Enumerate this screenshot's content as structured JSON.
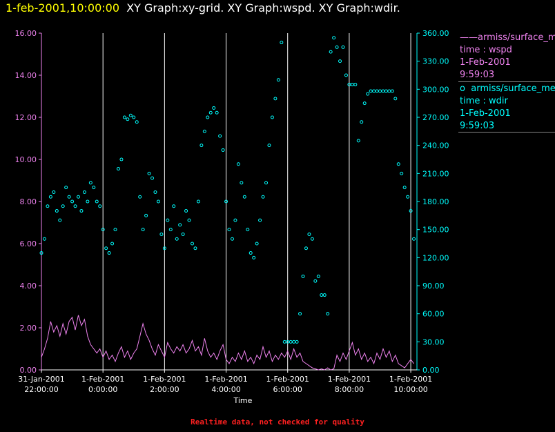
{
  "header": {
    "timestamp": "1-feb-2001,10:00:00",
    "graphs": "XY Graph:xy-grid.  XY Graph:wspd.  XY Graph:wdir."
  },
  "colors": {
    "background": "#000000",
    "timestamp": "#ffff00",
    "title": "#ffffff",
    "wspd": "#ee82ee",
    "wdir": "#00ffff",
    "grid": "#ffffff",
    "warning": "#ff2020"
  },
  "legend": [
    {
      "symbol": "——",
      "source": "armiss/surface_met",
      "variable": "time : wspd",
      "date": "1-Feb-2001",
      "time": "9:59:03"
    },
    {
      "symbol": "o",
      "source": "armiss/surface_met",
      "variable": "time : wdir",
      "date": "1-Feb-2001",
      "time": "9:59:03"
    }
  ],
  "warning": "Realtime data, not checked for quality",
  "chart_data": {
    "type": "line",
    "xlabel": "Time",
    "x_range_hours": [
      22.0,
      34.2
    ],
    "x_ticks": [
      {
        "hour": 22,
        "line1": "31-Jan-2001",
        "line2": "22:00:00"
      },
      {
        "hour": 24,
        "line1": "1-Feb-2001",
        "line2": "0:00:00"
      },
      {
        "hour": 26,
        "line1": "1-Feb-2001",
        "line2": "2:00:00"
      },
      {
        "hour": 28,
        "line1": "1-Feb-2001",
        "line2": "4:00:00"
      },
      {
        "hour": 30,
        "line1": "1-Feb-2001",
        "line2": "6:00:00"
      },
      {
        "hour": 32,
        "line1": "1-Feb-2001",
        "line2": "8:00:00"
      },
      {
        "hour": 34,
        "line1": "1-Feb-2001",
        "line2": "10:00:00"
      }
    ],
    "y_left": {
      "range": [
        0,
        16
      ],
      "ticks": [
        "0.00",
        "2.00",
        "4.00",
        "6.00",
        "8.00",
        "10.00",
        "12.00",
        "14.00",
        "16.00"
      ]
    },
    "y_right": {
      "range": [
        0,
        360
      ],
      "ticks": [
        "0.00",
        "30.00",
        "60.00",
        "90.00",
        "120.00",
        "150.00",
        "180.00",
        "210.00",
        "240.00",
        "270.00",
        "300.00",
        "330.00",
        "360.00"
      ]
    },
    "grid": "vertical at x ticks",
    "series": [
      {
        "variable": "wspd",
        "style": "line",
        "axis": "left",
        "points": [
          [
            22.0,
            0.6
          ],
          [
            22.1,
            1.0
          ],
          [
            22.2,
            1.5
          ],
          [
            22.3,
            2.3
          ],
          [
            22.4,
            1.8
          ],
          [
            22.5,
            2.1
          ],
          [
            22.6,
            1.6
          ],
          [
            22.7,
            2.2
          ],
          [
            22.8,
            1.7
          ],
          [
            22.9,
            2.3
          ],
          [
            23.0,
            2.5
          ],
          [
            23.1,
            1.9
          ],
          [
            23.2,
            2.6
          ],
          [
            23.3,
            2.1
          ],
          [
            23.4,
            2.4
          ],
          [
            23.5,
            1.6
          ],
          [
            23.6,
            1.2
          ],
          [
            23.7,
            1.0
          ],
          [
            23.8,
            0.8
          ],
          [
            23.9,
            1.0
          ],
          [
            24.0,
            0.6
          ],
          [
            24.1,
            0.9
          ],
          [
            24.2,
            0.5
          ],
          [
            24.3,
            0.7
          ],
          [
            24.4,
            0.4
          ],
          [
            24.5,
            0.8
          ],
          [
            24.6,
            1.1
          ],
          [
            24.7,
            0.6
          ],
          [
            24.8,
            0.9
          ],
          [
            24.9,
            0.5
          ],
          [
            25.0,
            0.8
          ],
          [
            25.1,
            1.0
          ],
          [
            25.2,
            1.6
          ],
          [
            25.3,
            2.2
          ],
          [
            25.4,
            1.7
          ],
          [
            25.5,
            1.4
          ],
          [
            25.6,
            1.0
          ],
          [
            25.7,
            0.7
          ],
          [
            25.8,
            1.2
          ],
          [
            25.9,
            0.9
          ],
          [
            26.0,
            0.6
          ],
          [
            26.1,
            1.3
          ],
          [
            26.2,
            1.0
          ],
          [
            26.3,
            0.8
          ],
          [
            26.4,
            1.1
          ],
          [
            26.5,
            0.9
          ],
          [
            26.6,
            1.2
          ],
          [
            26.7,
            0.8
          ],
          [
            26.8,
            1.0
          ],
          [
            26.9,
            1.4
          ],
          [
            27.0,
            0.9
          ],
          [
            27.1,
            1.1
          ],
          [
            27.2,
            0.7
          ],
          [
            27.3,
            1.5
          ],
          [
            27.4,
            0.9
          ],
          [
            27.5,
            0.6
          ],
          [
            27.6,
            0.8
          ],
          [
            27.7,
            0.5
          ],
          [
            27.8,
            0.9
          ],
          [
            27.9,
            1.2
          ],
          [
            28.0,
            0.5
          ],
          [
            28.1,
            0.3
          ],
          [
            28.2,
            0.6
          ],
          [
            28.3,
            0.4
          ],
          [
            28.4,
            0.8
          ],
          [
            28.5,
            0.5
          ],
          [
            28.6,
            0.9
          ],
          [
            28.7,
            0.4
          ],
          [
            28.8,
            0.6
          ],
          [
            28.9,
            0.3
          ],
          [
            29.0,
            0.7
          ],
          [
            29.1,
            0.5
          ],
          [
            29.2,
            1.1
          ],
          [
            29.3,
            0.6
          ],
          [
            29.4,
            0.9
          ],
          [
            29.5,
            0.4
          ],
          [
            29.6,
            0.7
          ],
          [
            29.7,
            0.5
          ],
          [
            29.8,
            0.8
          ],
          [
            29.9,
            0.6
          ],
          [
            30.0,
            0.9
          ],
          [
            30.1,
            0.5
          ],
          [
            30.2,
            1.0
          ],
          [
            30.3,
            0.6
          ],
          [
            30.4,
            0.8
          ],
          [
            30.5,
            0.4
          ],
          [
            30.6,
            0.3
          ],
          [
            30.7,
            0.2
          ],
          [
            30.8,
            0.1
          ],
          [
            30.9,
            0.05
          ],
          [
            31.0,
            0.0
          ],
          [
            31.1,
            0.05
          ],
          [
            31.2,
            0.0
          ],
          [
            31.3,
            0.1
          ],
          [
            31.4,
            0.0
          ],
          [
            31.5,
            0.05
          ],
          [
            31.6,
            0.7
          ],
          [
            31.7,
            0.4
          ],
          [
            31.8,
            0.8
          ],
          [
            31.9,
            0.5
          ],
          [
            32.0,
            0.9
          ],
          [
            32.1,
            1.3
          ],
          [
            32.2,
            0.7
          ],
          [
            32.3,
            1.0
          ],
          [
            32.4,
            0.5
          ],
          [
            32.5,
            0.8
          ],
          [
            32.6,
            0.4
          ],
          [
            32.7,
            0.6
          ],
          [
            32.8,
            0.3
          ],
          [
            32.9,
            0.8
          ],
          [
            33.0,
            0.5
          ],
          [
            33.1,
            1.0
          ],
          [
            33.2,
            0.6
          ],
          [
            33.3,
            0.9
          ],
          [
            33.4,
            0.4
          ],
          [
            33.5,
            0.7
          ],
          [
            33.6,
            0.3
          ],
          [
            33.7,
            0.2
          ],
          [
            33.8,
            0.1
          ],
          [
            33.9,
            0.3
          ],
          [
            34.0,
            0.5
          ],
          [
            34.1,
            0.3
          ]
        ]
      },
      {
        "variable": "wdir",
        "style": "circle-markers",
        "axis": "right",
        "points": [
          [
            22.0,
            125
          ],
          [
            22.1,
            140
          ],
          [
            22.2,
            175
          ],
          [
            22.3,
            185
          ],
          [
            22.4,
            190
          ],
          [
            22.5,
            170
          ],
          [
            22.6,
            160
          ],
          [
            22.7,
            175
          ],
          [
            22.8,
            195
          ],
          [
            22.9,
            185
          ],
          [
            23.0,
            180
          ],
          [
            23.1,
            175
          ],
          [
            23.2,
            185
          ],
          [
            23.3,
            170
          ],
          [
            23.4,
            190
          ],
          [
            23.5,
            180
          ],
          [
            23.6,
            200
          ],
          [
            23.7,
            195
          ],
          [
            23.8,
            180
          ],
          [
            23.9,
            175
          ],
          [
            24.0,
            150
          ],
          [
            24.1,
            130
          ],
          [
            24.2,
            125
          ],
          [
            24.3,
            135
          ],
          [
            24.4,
            150
          ],
          [
            24.5,
            215
          ],
          [
            24.6,
            225
          ],
          [
            24.7,
            270
          ],
          [
            24.8,
            268
          ],
          [
            24.9,
            272
          ],
          [
            25.0,
            270
          ],
          [
            25.1,
            265
          ],
          [
            25.2,
            185
          ],
          [
            25.3,
            150
          ],
          [
            25.4,
            165
          ],
          [
            25.5,
            210
          ],
          [
            25.6,
            205
          ],
          [
            25.7,
            190
          ],
          [
            25.8,
            180
          ],
          [
            25.9,
            145
          ],
          [
            26.0,
            130
          ],
          [
            26.1,
            160
          ],
          [
            26.2,
            150
          ],
          [
            26.3,
            175
          ],
          [
            26.4,
            140
          ],
          [
            26.5,
            155
          ],
          [
            26.6,
            145
          ],
          [
            26.7,
            170
          ],
          [
            26.8,
            160
          ],
          [
            26.9,
            135
          ],
          [
            27.0,
            130
          ],
          [
            27.1,
            180
          ],
          [
            27.2,
            240
          ],
          [
            27.3,
            255
          ],
          [
            27.4,
            270
          ],
          [
            27.5,
            275
          ],
          [
            27.6,
            280
          ],
          [
            27.7,
            275
          ],
          [
            27.8,
            250
          ],
          [
            27.9,
            235
          ],
          [
            28.0,
            180
          ],
          [
            28.1,
            150
          ],
          [
            28.2,
            140
          ],
          [
            28.3,
            160
          ],
          [
            28.4,
            220
          ],
          [
            28.5,
            200
          ],
          [
            28.6,
            185
          ],
          [
            28.7,
            150
          ],
          [
            28.8,
            125
          ],
          [
            28.9,
            120
          ],
          [
            29.0,
            135
          ],
          [
            29.1,
            160
          ],
          [
            29.2,
            185
          ],
          [
            29.3,
            200
          ],
          [
            29.4,
            240
          ],
          [
            29.5,
            270
          ],
          [
            29.6,
            290
          ],
          [
            29.7,
            310
          ],
          [
            29.8,
            350
          ],
          [
            29.9,
            30
          ],
          [
            30.0,
            30
          ],
          [
            30.1,
            30
          ],
          [
            30.2,
            30
          ],
          [
            30.3,
            30
          ],
          [
            30.4,
            60
          ],
          [
            30.5,
            100
          ],
          [
            30.6,
            130
          ],
          [
            30.7,
            145
          ],
          [
            30.8,
            140
          ],
          [
            30.9,
            95
          ],
          [
            31.0,
            100
          ],
          [
            31.1,
            80
          ],
          [
            31.2,
            80
          ],
          [
            31.3,
            60
          ],
          [
            31.4,
            340
          ],
          [
            31.5,
            355
          ],
          [
            31.6,
            345
          ],
          [
            31.7,
            330
          ],
          [
            31.8,
            345
          ],
          [
            31.9,
            315
          ],
          [
            32.0,
            305
          ],
          [
            32.1,
            305
          ],
          [
            32.2,
            305
          ],
          [
            32.3,
            245
          ],
          [
            32.4,
            265
          ],
          [
            32.5,
            285
          ],
          [
            32.6,
            295
          ],
          [
            32.7,
            298
          ],
          [
            32.8,
            298
          ],
          [
            32.9,
            298
          ],
          [
            33.0,
            298
          ],
          [
            33.1,
            298
          ],
          [
            33.2,
            298
          ],
          [
            33.3,
            298
          ],
          [
            33.4,
            298
          ],
          [
            33.5,
            290
          ],
          [
            33.6,
            220
          ],
          [
            33.7,
            210
          ],
          [
            33.8,
            195
          ],
          [
            33.9,
            185
          ],
          [
            34.0,
            170
          ],
          [
            34.1,
            140
          ]
        ]
      }
    ]
  }
}
